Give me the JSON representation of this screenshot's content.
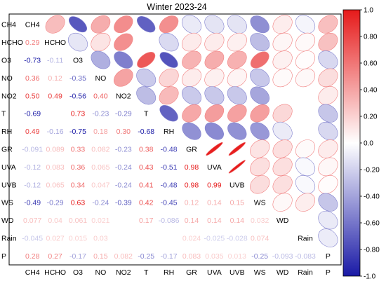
{
  "chart_data": {
    "type": "heatmap",
    "title": "Winter 2023-24",
    "variables": [
      "CH4",
      "HCHO",
      "O3",
      "NO",
      "NO2",
      "T",
      "RH",
      "GR",
      "UVA",
      "UVB",
      "WS",
      "WD",
      "Rain",
      "P"
    ],
    "lower_triangle_values": [
      [],
      [
        0.29
      ],
      [
        -0.73,
        -0.11
      ],
      [
        0.36,
        0.12,
        -0.35
      ],
      [
        0.5,
        0.49,
        -0.56,
        0.4
      ],
      [
        -0.69,
        0.0,
        0.73,
        -0.23,
        -0.29
      ],
      [
        0.49,
        -0.16,
        -0.75,
        0.18,
        0.3,
        -0.68
      ],
      [
        -0.091,
        0.089,
        0.33,
        0.082,
        -0.23,
        0.38,
        -0.48
      ],
      [
        -0.12,
        0.083,
        0.36,
        0.065,
        -0.24,
        0.43,
        -0.51,
        0.98
      ],
      [
        -0.12,
        0.065,
        0.34,
        0.047,
        -0.24,
        0.41,
        -0.48,
        0.98,
        0.99
      ],
      [
        -0.49,
        -0.29,
        0.63,
        -0.24,
        -0.39,
        0.42,
        -0.45,
        0.12,
        0.14,
        0.15
      ],
      [
        0.077,
        0.04,
        0.061,
        0.021,
        0.0,
        0.17,
        -0.086,
        0.14,
        0.14,
        0.14,
        0.032
      ],
      [
        -0.045,
        0.027,
        0.015,
        0.03,
        0.0,
        0.0,
        0.0,
        0.024,
        -0.025,
        -0.028,
        0.074,
        0.0
      ],
      [
        0.28,
        0.27,
        -0.17,
        0.15,
        0.082,
        -0.25,
        -0.17,
        0.083,
        0.035,
        0.013,
        -0.25,
        -0.093,
        -0.083
      ]
    ],
    "upper_triangle_display": "ellipse",
    "lower_triangle_display": "number",
    "colorbar": {
      "range": [
        -1.0,
        1.0
      ],
      "ticks": [
        "1.0",
        "0.60",
        "0.20",
        "-0.20",
        "-0.60",
        "-1.0"
      ],
      "ticks_mid": [
        "0.80",
        "0.40",
        "0.0",
        "-0.40",
        "-0.80"
      ],
      "colors": [
        "#1a1aa6",
        "#ffffff",
        "#e61a1a"
      ]
    }
  }
}
